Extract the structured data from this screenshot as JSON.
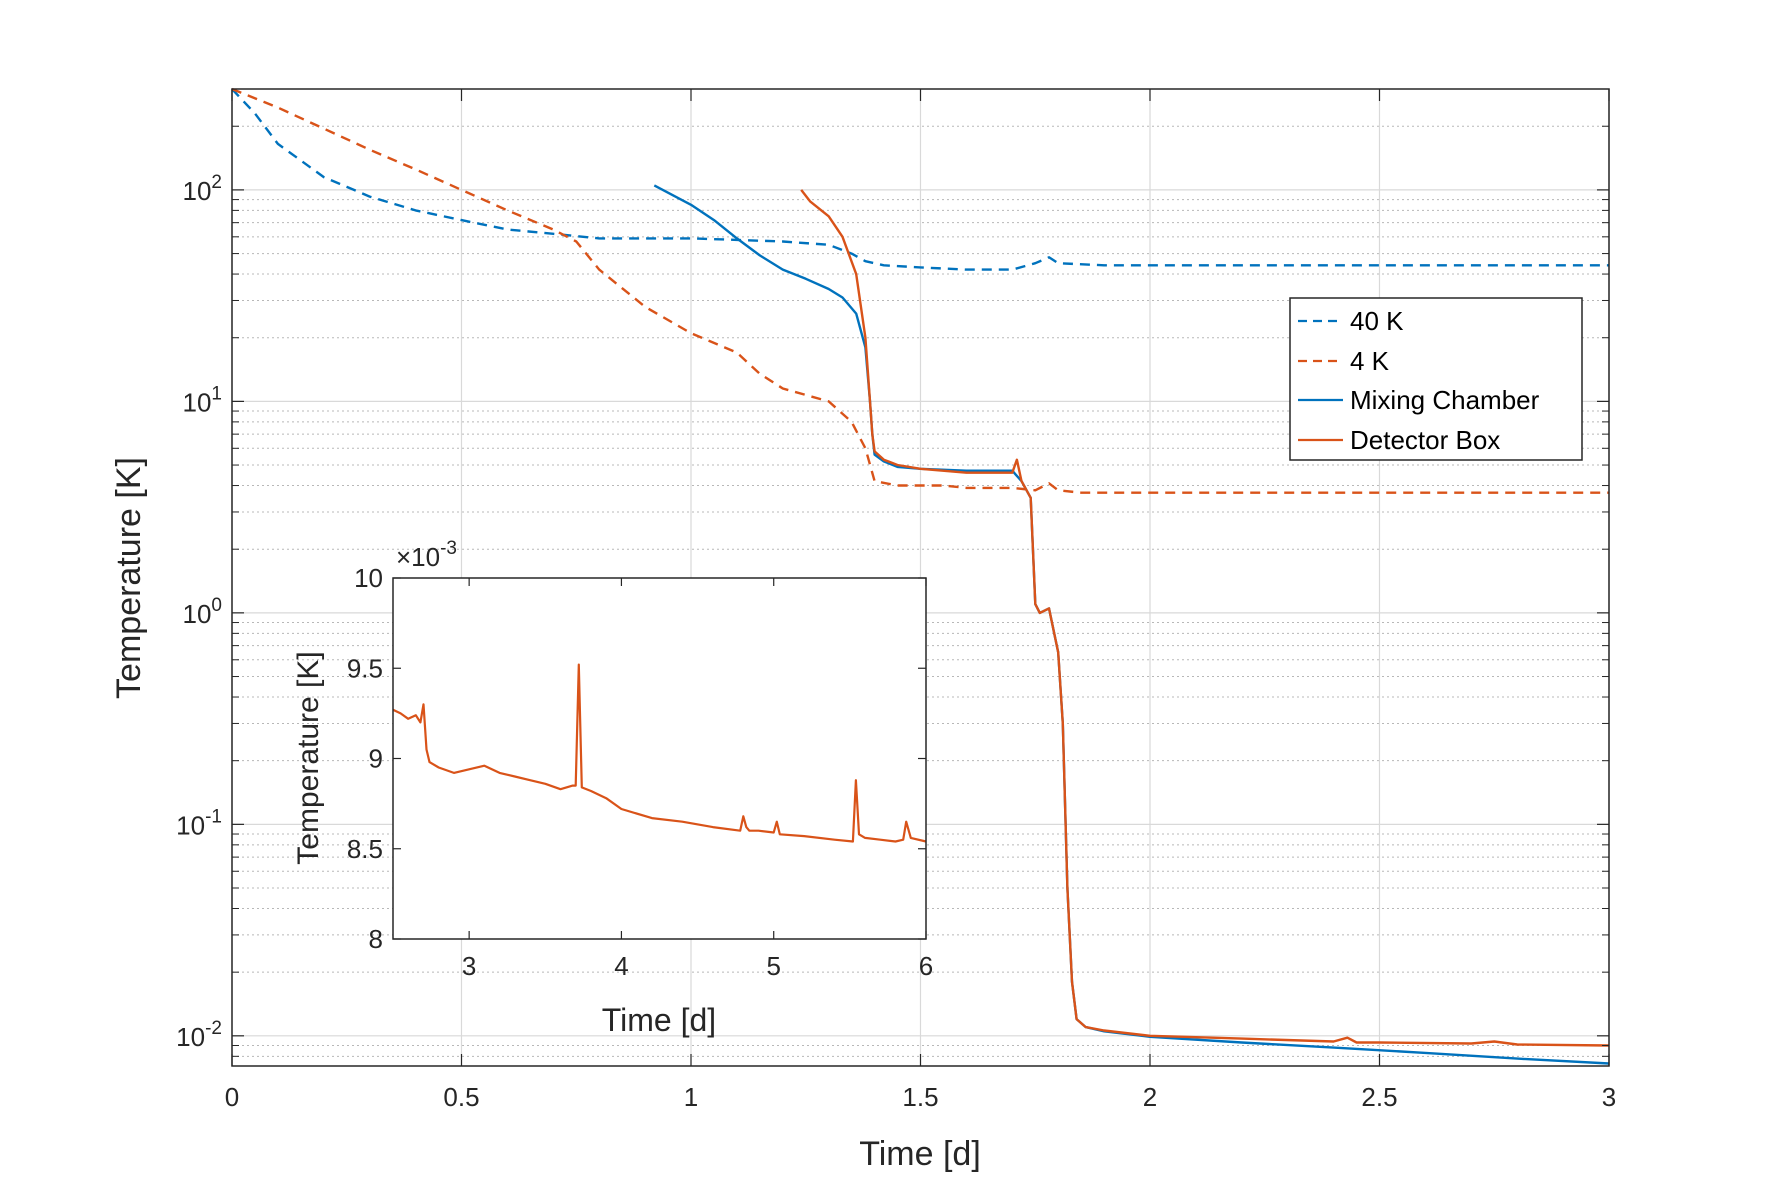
{
  "chart_data": [
    {
      "type": "line",
      "id": "main",
      "xlabel": "Time [d]",
      "ylabel": "Temperature [K]",
      "xlim": [
        0,
        3
      ],
      "ylim": [
        0.0072,
        300
      ],
      "yscale": "log",
      "grid": true,
      "xticks": [
        0,
        0.5,
        1,
        1.5,
        2,
        2.5,
        3
      ],
      "xtick_labels": [
        "0",
        "0.5",
        "1",
        "1.5",
        "2",
        "2.5",
        "3"
      ],
      "yticks": [
        {
          "value": 0.01,
          "base": "10",
          "exp": "-2"
        },
        {
          "value": 0.1,
          "base": "10",
          "exp": "-1"
        },
        {
          "value": 1,
          "base": "10",
          "exp": "0"
        },
        {
          "value": 10,
          "base": "10",
          "exp": "1"
        },
        {
          "value": 100,
          "base": "10",
          "exp": "2"
        }
      ],
      "legend_position": "right",
      "legend": [
        "40 K",
        "4 K",
        "Mixing Chamber",
        "Detector Box"
      ],
      "series": [
        {
          "name": "40 K",
          "color": "#0072BD",
          "style": "dashed",
          "x": [
            0,
            0.05,
            0.1,
            0.2,
            0.3,
            0.4,
            0.5,
            0.6,
            0.7,
            0.8,
            0.9,
            1.0,
            1.1,
            1.2,
            1.3,
            1.35,
            1.38,
            1.42,
            1.5,
            1.6,
            1.7,
            1.75,
            1.78,
            1.8,
            1.9,
            2.0,
            2.2,
            2.5,
            3.0
          ],
          "y": [
            300,
            230,
            165,
            115,
            93,
            80,
            72,
            65,
            62,
            59,
            59,
            59,
            58,
            57,
            55,
            50,
            46,
            44,
            43,
            42,
            42,
            45,
            48,
            45,
            44,
            44,
            44,
            44,
            44
          ]
        },
        {
          "name": "4 K",
          "color": "#D95319",
          "style": "dashed",
          "x": [
            0,
            0.1,
            0.2,
            0.3,
            0.4,
            0.5,
            0.6,
            0.7,
            0.75,
            0.8,
            0.9,
            1.0,
            1.1,
            1.15,
            1.2,
            1.3,
            1.35,
            1.38,
            1.4,
            1.45,
            1.5,
            1.55,
            1.6,
            1.7,
            1.75,
            1.78,
            1.8,
            1.85,
            1.9,
            2.0,
            2.5,
            3.0
          ],
          "y": [
            300,
            245,
            195,
            155,
            125,
            100,
            80,
            65,
            57,
            42,
            28,
            21,
            17,
            13.5,
            11.5,
            10,
            8,
            6,
            4.2,
            4.0,
            4.0,
            4.0,
            3.9,
            3.9,
            3.8,
            4.1,
            3.8,
            3.7,
            3.7,
            3.7,
            3.7,
            3.7
          ]
        },
        {
          "name": "Mixing Chamber",
          "color": "#0072BD",
          "style": "solid",
          "x": [
            0.92,
            1.0,
            1.05,
            1.1,
            1.15,
            1.2,
            1.25,
            1.3,
            1.33,
            1.36,
            1.38,
            1.39,
            1.395,
            1.4,
            1.42,
            1.45,
            1.5,
            1.6,
            1.7,
            1.72,
            1.74,
            1.75,
            1.76,
            1.78,
            1.8,
            1.81,
            1.82,
            1.83,
            1.84,
            1.86,
            1.9,
            2.0,
            2.2,
            2.4,
            2.6,
            2.8,
            3.0
          ],
          "y": [
            105,
            85,
            72,
            59,
            49,
            42,
            38,
            34,
            31,
            26,
            18,
            10,
            7,
            5.6,
            5.2,
            4.9,
            4.8,
            4.7,
            4.7,
            4.2,
            3.5,
            1.1,
            1.0,
            1.05,
            0.65,
            0.3,
            0.05,
            0.018,
            0.012,
            0.011,
            0.0105,
            0.0099,
            0.0093,
            0.0088,
            0.0083,
            0.0078,
            0.0074
          ]
        },
        {
          "name": "Detector Box",
          "color": "#D95319",
          "style": "solid",
          "x": [
            1.24,
            1.26,
            1.3,
            1.33,
            1.36,
            1.38,
            1.39,
            1.395,
            1.4,
            1.42,
            1.45,
            1.5,
            1.6,
            1.7,
            1.71,
            1.72,
            1.74,
            1.75,
            1.76,
            1.78,
            1.8,
            1.81,
            1.82,
            1.83,
            1.84,
            1.86,
            1.9,
            2.0,
            2.2,
            2.4,
            2.43,
            2.45,
            2.5,
            2.7,
            2.75,
            2.8,
            3.0
          ],
          "y": [
            100,
            88,
            75,
            60,
            40,
            20,
            10,
            7,
            5.8,
            5.3,
            5.0,
            4.8,
            4.6,
            4.6,
            5.3,
            4.2,
            3.5,
            1.1,
            1.0,
            1.05,
            0.65,
            0.3,
            0.05,
            0.018,
            0.012,
            0.011,
            0.0106,
            0.01,
            0.0097,
            0.0094,
            0.0098,
            0.0093,
            0.0093,
            0.0092,
            0.0094,
            0.0091,
            0.009
          ]
        }
      ]
    },
    {
      "type": "line",
      "id": "inset",
      "xlabel": "Time [d]",
      "ylabel": "Temperature [K]",
      "xlim": [
        2.5,
        6
      ],
      "ylim": [
        8,
        10
      ],
      "exponent_label": {
        "prefix": "×10",
        "exp": "-3"
      },
      "grid": false,
      "xticks": [
        3,
        4,
        5,
        6
      ],
      "xtick_labels": [
        "3",
        "4",
        "5",
        "6"
      ],
      "yticks": [
        8,
        8.5,
        9,
        9.5,
        10
      ],
      "ytick_labels": [
        "8",
        "8.5",
        "9",
        "9.5",
        "10"
      ],
      "series": [
        {
          "name": "Detector Box",
          "color": "#D95319",
          "style": "solid",
          "x": [
            2.5,
            2.55,
            2.6,
            2.65,
            2.68,
            2.7,
            2.72,
            2.74,
            2.8,
            2.9,
            3.0,
            3.1,
            3.2,
            3.3,
            3.4,
            3.5,
            3.6,
            3.68,
            3.7,
            3.72,
            3.74,
            3.8,
            3.9,
            4.0,
            4.2,
            4.4,
            4.6,
            4.78,
            4.8,
            4.82,
            4.84,
            4.9,
            5.0,
            5.02,
            5.04,
            5.2,
            5.4,
            5.52,
            5.54,
            5.56,
            5.6,
            5.7,
            5.8,
            5.85,
            5.87,
            5.9,
            6.0
          ],
          "y": [
            9.27,
            9.25,
            9.22,
            9.24,
            9.2,
            9.3,
            9.05,
            8.98,
            8.95,
            8.92,
            8.94,
            8.96,
            8.92,
            8.9,
            8.88,
            8.86,
            8.83,
            8.85,
            8.85,
            9.52,
            8.84,
            8.82,
            8.78,
            8.72,
            8.67,
            8.65,
            8.62,
            8.6,
            8.68,
            8.62,
            8.6,
            8.6,
            8.59,
            8.65,
            8.58,
            8.57,
            8.55,
            8.54,
            8.88,
            8.58,
            8.56,
            8.55,
            8.54,
            8.55,
            8.65,
            8.56,
            8.54
          ]
        }
      ]
    }
  ]
}
